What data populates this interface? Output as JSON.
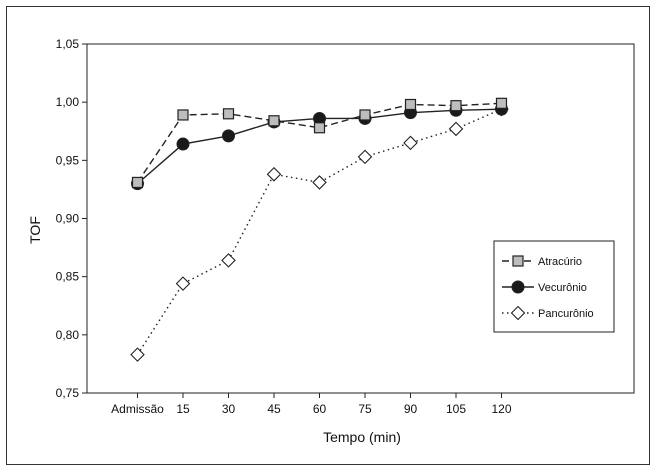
{
  "chart_data": {
    "type": "line",
    "xlabel": "Tempo (min)",
    "ylabel": "TOF",
    "categories": [
      "Admissão",
      "15",
      "30",
      "45",
      "60",
      "75",
      "90",
      "105",
      "120"
    ],
    "ylim": [
      0.75,
      1.05
    ],
    "yticks": [
      "0,75",
      "0,80",
      "0,85",
      "0,90",
      "0,95",
      "1,00",
      "1,05"
    ],
    "legend_position": "right",
    "series": [
      {
        "name": "Atracúrio",
        "marker": "square",
        "line": "dashed",
        "color": "#222222",
        "fill": "#bdbdbd",
        "values": [
          0.931,
          0.989,
          0.99,
          0.984,
          0.978,
          0.989,
          0.998,
          0.997,
          0.999
        ]
      },
      {
        "name": "Vecurônio",
        "marker": "circle",
        "line": "solid",
        "color": "#222222",
        "fill": "#1a1a1a",
        "values": [
          0.93,
          0.964,
          0.971,
          0.983,
          0.986,
          0.986,
          0.991,
          0.993,
          0.994
        ]
      },
      {
        "name": "Pancurônio",
        "marker": "diamond",
        "line": "dotted",
        "color": "#222222",
        "fill": "#ffffff",
        "values": [
          0.783,
          0.844,
          0.864,
          0.938,
          0.931,
          0.953,
          0.965,
          0.977,
          0.994
        ]
      }
    ]
  }
}
